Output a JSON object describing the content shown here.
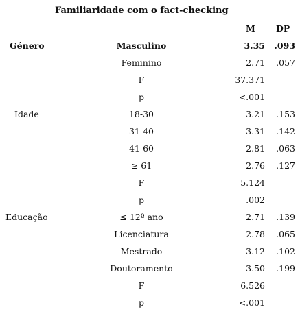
{
  "title": "Familiaridade com o fact-checking",
  "headers": {
    "m": "M",
    "dp": "DP"
  },
  "rows": [
    {
      "group": "Género",
      "label": "Masculino",
      "m": "3.35",
      "dp": ".093",
      "bold": true
    },
    {
      "group": "",
      "label": "Feminino",
      "m": "2.71",
      "dp": ".057"
    },
    {
      "group": "",
      "label": "F",
      "m": "37.371",
      "dp": ""
    },
    {
      "group": "",
      "label": "p",
      "m": "<.001",
      "dp": ""
    },
    {
      "group": "Idade",
      "label": "18-30",
      "m": "3.21",
      "dp": ".153"
    },
    {
      "group": "",
      "label": "31-40",
      "m": "3.31",
      "dp": ".142"
    },
    {
      "group": "",
      "label": "41-60",
      "m": "2.81",
      "dp": ".063"
    },
    {
      "group": "",
      "label": "≥ 61",
      "m": "2.76",
      "dp": ".127"
    },
    {
      "group": "",
      "label": "F",
      "m": "5.124",
      "dp": ""
    },
    {
      "group": "",
      "label": "p",
      "m": ".002",
      "dp": ""
    },
    {
      "group": "Educação",
      "label": "≤ 12º ano",
      "m": "2.71",
      "dp": ".139"
    },
    {
      "group": "",
      "label": "Licenciatura",
      "m": "2.78",
      "dp": ".065"
    },
    {
      "group": "",
      "label": "Mestrado",
      "m": "3.12",
      "dp": ".102"
    },
    {
      "group": "",
      "label": "Doutoramento",
      "m": "3.50",
      "dp": ".199"
    },
    {
      "group": "",
      "label": "F",
      "m": "6.526",
      "dp": ""
    },
    {
      "group": "",
      "label": "p",
      "m": "<.001",
      "dp": ""
    }
  ]
}
